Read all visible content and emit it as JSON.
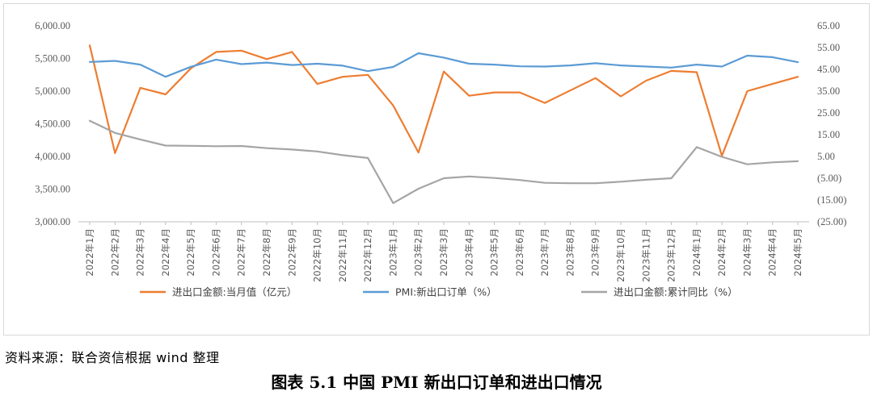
{
  "chart_data": {
    "type": "line",
    "categories": [
      "2022年1月",
      "2022年2月",
      "2022年3月",
      "2022年4月",
      "2022年5月",
      "2022年6月",
      "2022年7月",
      "2022年8月",
      "2022年9月",
      "2022年10月",
      "2022年11月",
      "2022年12月",
      "2023年1月",
      "2023年2月",
      "2023年3月",
      "2023年4月",
      "2023年5月",
      "2023年6月",
      "2023年7月",
      "2023年8月",
      "2023年9月",
      "2023年10月",
      "2023年11月",
      "2023年12月",
      "2024年1月",
      "2024年2月",
      "2024年3月",
      "2024年4月",
      "2024年5月"
    ],
    "y_left": {
      "min": 3000,
      "max": 6000,
      "step": 500,
      "ticks": [
        "3,000.00",
        "3,500.00",
        "4,000.00",
        "4,500.00",
        "5,000.00",
        "5,500.00",
        "6,000.00"
      ]
    },
    "y_right": {
      "min": -25,
      "max": 65,
      "step": 10,
      "ticks": [
        "(25.00)",
        "(15.00)",
        "(5.00)",
        "5.00",
        "15.00",
        "25.00",
        "35.00",
        "45.00",
        "55.00",
        "65.00"
      ]
    },
    "series": [
      {
        "name": "进出口金额:当月值（亿元）",
        "axis": "left",
        "color": "#ed7d31",
        "values": [
          5700,
          4050,
          5050,
          4950,
          5350,
          5600,
          5620,
          5490,
          5600,
          5110,
          5220,
          5250,
          4780,
          4060,
          5300,
          4930,
          4980,
          4980,
          4820,
          5010,
          5200,
          4920,
          5160,
          5310,
          5290,
          4010,
          5000,
          5110,
          5220
        ]
      },
      {
        "name": "PMI:新出口订单（%）",
        "axis": "right",
        "color": "#5b9bd5",
        "values": [
          48.4,
          48.9,
          47.2,
          41.6,
          46.2,
          49.5,
          47.4,
          48.1,
          47.0,
          47.6,
          46.7,
          44.2,
          46.1,
          52.4,
          50.4,
          47.6,
          47.2,
          46.4,
          46.3,
          46.8,
          47.8,
          46.8,
          46.3,
          45.8,
          47.2,
          46.3,
          51.3,
          50.6,
          48.3
        ]
      },
      {
        "name": "进出口金额:累计同比（%）",
        "axis": "right",
        "color": "#a5a5a5",
        "values": [
          21.4,
          15.8,
          12.8,
          10.0,
          9.9,
          9.7,
          9.8,
          8.8,
          8.2,
          7.3,
          5.6,
          4.3,
          -16.4,
          -9.8,
          -5.0,
          -4.2,
          -4.9,
          -5.8,
          -7.1,
          -7.3,
          -7.3,
          -6.6,
          -5.7,
          -5.0,
          9.3,
          4.8,
          1.4,
          2.3,
          2.8
        ]
      }
    ],
    "grid": false,
    "legend_position": "bottom"
  },
  "source_note": "资料来源：联合资信根据 wind 整理",
  "figure_caption": "图表 5.1    中国 PMI 新出口订单和进出口情况"
}
